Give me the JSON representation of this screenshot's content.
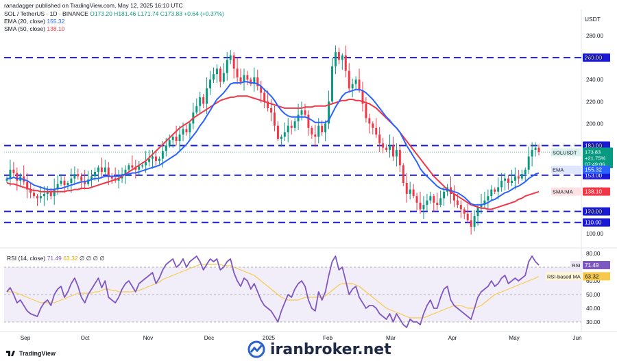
{
  "header": {
    "publisher": "ranadagger published on TradingView.com, May 12, 2025 16:10 UTC",
    "symbol": "SOL / TetherUS · 1D · BINANCE",
    "ohlc": "O173.20 H181.46 L171.74 C173.83 +0.64 (+0.37%)",
    "ema_label": "EMA (20, close)",
    "ema_value": "155.32",
    "sma_label": "SMA (50, close)",
    "sma_value": "138.10",
    "rsi_label": "RSI (14, close)",
    "rsi_value": "71.49",
    "rsi_ma_value": "63.32",
    "rsi_extra": "∅ ∅ ∅ ∅"
  },
  "axis_currency": "USDT",
  "footer": {
    "brand": "TradingView"
  },
  "watermark": "iranbroker.net",
  "colors": {
    "up": "#089981",
    "down": "#f23645",
    "ema": "#2962ff",
    "sma": "#f23645",
    "rsi": "#7e57c2",
    "rsi_ma": "#f7c94b",
    "level": "#1a1ad6"
  },
  "chart_data": [
    {
      "type": "candlestick",
      "title": "SOL / TetherUS · 1D · BINANCE",
      "ylabel": "USDT",
      "ylim": [
        88,
        300
      ],
      "y_ticks": [
        "100.00",
        "120.00",
        "140.00",
        "160.00",
        "180.00",
        "200.00",
        "220.00",
        "240.00",
        "260.00",
        "280.00"
      ],
      "x_ticks": [
        "Sep",
        "Oct",
        "Nov",
        "Dec",
        "2025",
        "Feb",
        "Mar",
        "Apr",
        "May",
        "Jun"
      ],
      "horizontal_levels": [
        260,
        180,
        153,
        120,
        110
      ],
      "level_labels": [
        "260.00",
        "180.00",
        "153.00",
        "120.00",
        "110.00"
      ],
      "price_tags": [
        {
          "label": "SOLUSDT",
          "value": "173.83",
          "change": "+21.75%",
          "countdown": "07:49:06"
        },
        {
          "label": "EMA",
          "value": "155.32"
        },
        {
          "label": "SMA:MA",
          "value": "138.10"
        }
      ],
      "series": [
        {
          "name": "price",
          "values": [
            150,
            158,
            155,
            148,
            152,
            147,
            140,
            137,
            134,
            132,
            134,
            136,
            138,
            134,
            140,
            145,
            148,
            144,
            146,
            150,
            154,
            152,
            148,
            145,
            149,
            152,
            156,
            160,
            156,
            160,
            152,
            150,
            148,
            150,
            154,
            158,
            162,
            160,
            158,
            161,
            162,
            165,
            168,
            170,
            166,
            168,
            175,
            180,
            185,
            188,
            184,
            190,
            195,
            192,
            200,
            210,
            216,
            224,
            218,
            232,
            240,
            245,
            250,
            238,
            246,
            258,
            262,
            250,
            242,
            238,
            244,
            240,
            236,
            242,
            234,
            228,
            220,
            214,
            210,
            198,
            186,
            188,
            192,
            198,
            196,
            202,
            208,
            212,
            208,
            196,
            190,
            188,
            198,
            192,
            200,
            220,
            252,
            265,
            258,
            262,
            248,
            232,
            236,
            240,
            230,
            218,
            205,
            200,
            196,
            190,
            182,
            178,
            176,
            180,
            170,
            176,
            162,
            146,
            136,
            140,
            134,
            128,
            122,
            126,
            130,
            134,
            128,
            126,
            132,
            138,
            142,
            136,
            130,
            126,
            122,
            118,
            112,
            106,
            116,
            124,
            126,
            130,
            134,
            140,
            138,
            142,
            148,
            150,
            146,
            148,
            152,
            150,
            154,
            158,
            170,
            176,
            178,
            174
          ]
        },
        {
          "name": "EMA 20",
          "values": [
            150,
            150,
            151,
            150,
            150,
            149,
            148,
            146,
            144,
            143,
            142,
            141,
            140,
            140,
            140,
            141,
            141,
            142,
            143,
            144,
            145,
            146,
            147,
            147,
            148,
            149,
            150,
            150,
            151,
            152,
            152,
            152,
            152,
            152,
            153,
            154,
            154,
            155,
            155,
            156,
            157,
            158,
            159,
            160,
            161,
            162,
            164,
            166,
            168,
            170,
            172,
            175,
            178,
            181,
            185,
            189,
            193,
            198,
            202,
            207,
            212,
            217,
            222,
            225,
            228,
            232,
            236,
            237,
            237,
            237,
            238,
            238,
            237,
            237,
            236,
            234,
            231,
            228,
            225,
            221,
            216,
            212,
            209,
            207,
            206,
            206,
            206,
            206,
            206,
            205,
            203,
            201,
            201,
            201,
            201,
            203,
            209,
            215,
            220,
            225,
            228,
            229,
            230,
            231,
            231,
            230,
            228,
            225,
            222,
            218,
            214,
            210,
            206,
            203,
            199,
            196,
            192,
            186,
            180,
            175,
            170,
            165,
            159,
            155,
            152,
            149,
            146,
            143,
            141,
            140,
            140,
            139,
            138,
            137,
            135,
            133,
            130,
            127,
            126,
            126,
            126,
            127,
            128,
            130,
            131,
            133,
            135,
            137,
            138,
            140,
            142,
            143,
            145,
            147,
            150,
            152,
            154,
            155
          ]
        },
        {
          "name": "SMA 50",
          "values": [
            146,
            145,
            145,
            144,
            143,
            142,
            141,
            140,
            139,
            139,
            138,
            138,
            138,
            138,
            138,
            138,
            138,
            138,
            139,
            139,
            140,
            140,
            141,
            141,
            141,
            142,
            143,
            144,
            145,
            146,
            147,
            148,
            149,
            150,
            152,
            154,
            156,
            158,
            160,
            162,
            164,
            166,
            169,
            172,
            175,
            178,
            181,
            184,
            187,
            190,
            193,
            196,
            198,
            200,
            202,
            205,
            207,
            209,
            211,
            213,
            215,
            217,
            219,
            221,
            222,
            223,
            224,
            224,
            225,
            225,
            225,
            225,
            224,
            223,
            222,
            221,
            220,
            219,
            218,
            217,
            216,
            215,
            214,
            214,
            214,
            214,
            214,
            214,
            215,
            215,
            215,
            216,
            216,
            216,
            216,
            217,
            218,
            219,
            220,
            221,
            221,
            222,
            222,
            221,
            221,
            220,
            219,
            218,
            216,
            214,
            211,
            208,
            205,
            202,
            199,
            196,
            192,
            188,
            184,
            180,
            176,
            172,
            168,
            164,
            160,
            156,
            152,
            149,
            146,
            143,
            140,
            138,
            136,
            134,
            132,
            130,
            128,
            126,
            125,
            124,
            123,
            123,
            122,
            122,
            123,
            124,
            125,
            126,
            127,
            128,
            129,
            131,
            132,
            134,
            135,
            136,
            137,
            138
          ]
        }
      ]
    },
    {
      "type": "line",
      "title": "RSI (14, close)",
      "ylim": [
        24,
        84
      ],
      "y_ticks": [
        "30.00",
        "40.00",
        "50.00",
        "60.00",
        "70.00",
        "80.00"
      ],
      "band": [
        30,
        70
      ],
      "tags": [
        {
          "label": "RSI",
          "value": "71.49"
        },
        {
          "label": "RSI-based MA",
          "value": "63.32"
        }
      ],
      "series": [
        {
          "name": "RSI",
          "values": [
            52,
            55,
            50,
            44,
            46,
            42,
            38,
            36,
            35,
            34,
            40,
            44,
            46,
            42,
            50,
            54,
            56,
            48,
            52,
            58,
            62,
            56,
            48,
            44,
            50,
            54,
            58,
            62,
            55,
            60,
            48,
            46,
            44,
            48,
            54,
            58,
            60,
            56,
            52,
            58,
            60,
            62,
            64,
            66,
            58,
            62,
            68,
            72,
            74,
            76,
            70,
            72,
            76,
            70,
            74,
            76,
            78,
            74,
            68,
            72,
            76,
            74,
            76,
            68,
            70,
            74,
            76,
            66,
            60,
            56,
            62,
            60,
            54,
            58,
            52,
            46,
            42,
            40,
            38,
            34,
            30,
            38,
            44,
            50,
            48,
            54,
            58,
            60,
            56,
            46,
            40,
            38,
            52,
            46,
            52,
            64,
            74,
            78,
            68,
            70,
            60,
            50,
            54,
            56,
            48,
            44,
            40,
            42,
            42,
            40,
            36,
            34,
            32,
            36,
            30,
            36,
            32,
            28,
            26,
            32,
            30,
            30,
            28,
            36,
            42,
            46,
            40,
            40,
            48,
            54,
            56,
            46,
            42,
            40,
            38,
            36,
            34,
            32,
            40,
            48,
            52,
            54,
            56,
            60,
            56,
            58,
            62,
            64,
            58,
            60,
            62,
            60,
            62,
            64,
            74,
            78,
            74,
            71.49
          ]
        },
        {
          "name": "RSI-based MA",
          "values": [
            52,
            52,
            52,
            51,
            50,
            49,
            48,
            47,
            46,
            45,
            44,
            44,
            44,
            44,
            44,
            45,
            46,
            47,
            48,
            49,
            50,
            51,
            51,
            51,
            51,
            51,
            52,
            52,
            53,
            54,
            54,
            53,
            53,
            52,
            52,
            52,
            52,
            52,
            53,
            53,
            54,
            55,
            56,
            57,
            58,
            59,
            61,
            62,
            63,
            64,
            65,
            66,
            67,
            68,
            69,
            70,
            71,
            72,
            72,
            72,
            72,
            72,
            72,
            72,
            71,
            71,
            71,
            70,
            69,
            68,
            67,
            66,
            65,
            64,
            62,
            60,
            58,
            56,
            54,
            52,
            50,
            48,
            47,
            46,
            46,
            46,
            46,
            47,
            48,
            48,
            48,
            48,
            48,
            48,
            49,
            51,
            53,
            55,
            57,
            58,
            58,
            58,
            58,
            57,
            56,
            54,
            52,
            50,
            48,
            46,
            44,
            42,
            40,
            39,
            38,
            37,
            36,
            35,
            34,
            33,
            33,
            33,
            33,
            33,
            34,
            35,
            36,
            37,
            38,
            39,
            40,
            41,
            42,
            42,
            42,
            41,
            40,
            40,
            40,
            41,
            42,
            44,
            46,
            48,
            50,
            51,
            52,
            53,
            54,
            55,
            56,
            57,
            58,
            59,
            60,
            61,
            62,
            63.32
          ]
        }
      ]
    }
  ]
}
